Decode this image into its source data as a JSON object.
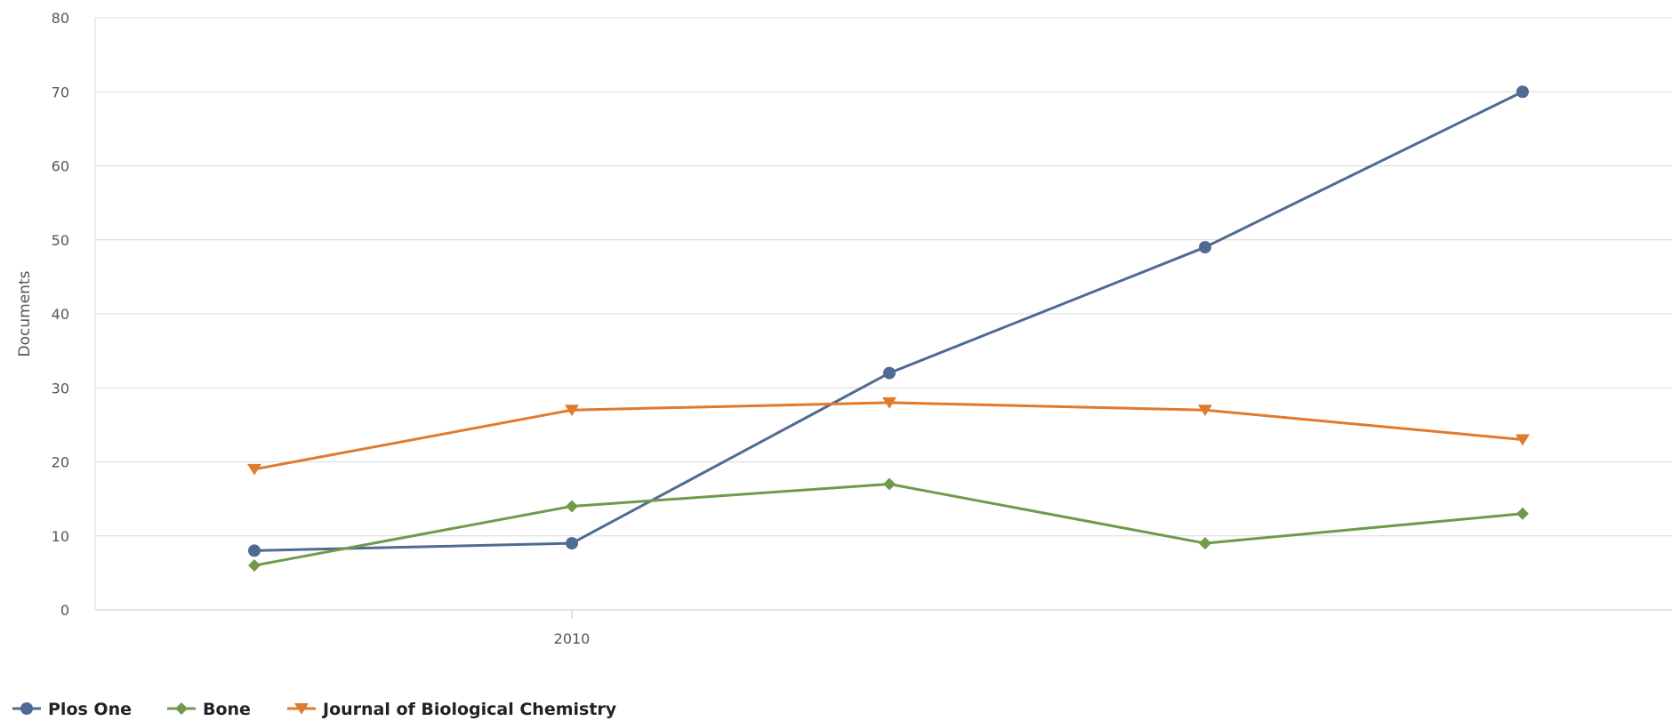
{
  "chart_data": {
    "type": "line",
    "title": "",
    "xlabel": "",
    "ylabel": "Documents",
    "ylim": [
      0,
      80
    ],
    "yticks": [
      0,
      10,
      20,
      30,
      40,
      50,
      60,
      70,
      80
    ],
    "x_labeled_ticks": [
      "2010"
    ],
    "x_label_point_index": 1,
    "grid": true,
    "legend_position": "bottom-left",
    "series": [
      {
        "name": "Plos One",
        "color": "#4f6b94",
        "marker": "circle",
        "values": [
          8,
          9,
          32,
          49,
          70
        ]
      },
      {
        "name": "Bone",
        "color": "#6f9a4a",
        "marker": "diamond",
        "values": [
          6,
          14,
          17,
          9,
          13
        ]
      },
      {
        "name": "Journal of Biological Chemistry",
        "color": "#e07a2c",
        "marker": "triangle-down",
        "values": [
          19,
          27,
          28,
          27,
          23
        ]
      }
    ]
  }
}
